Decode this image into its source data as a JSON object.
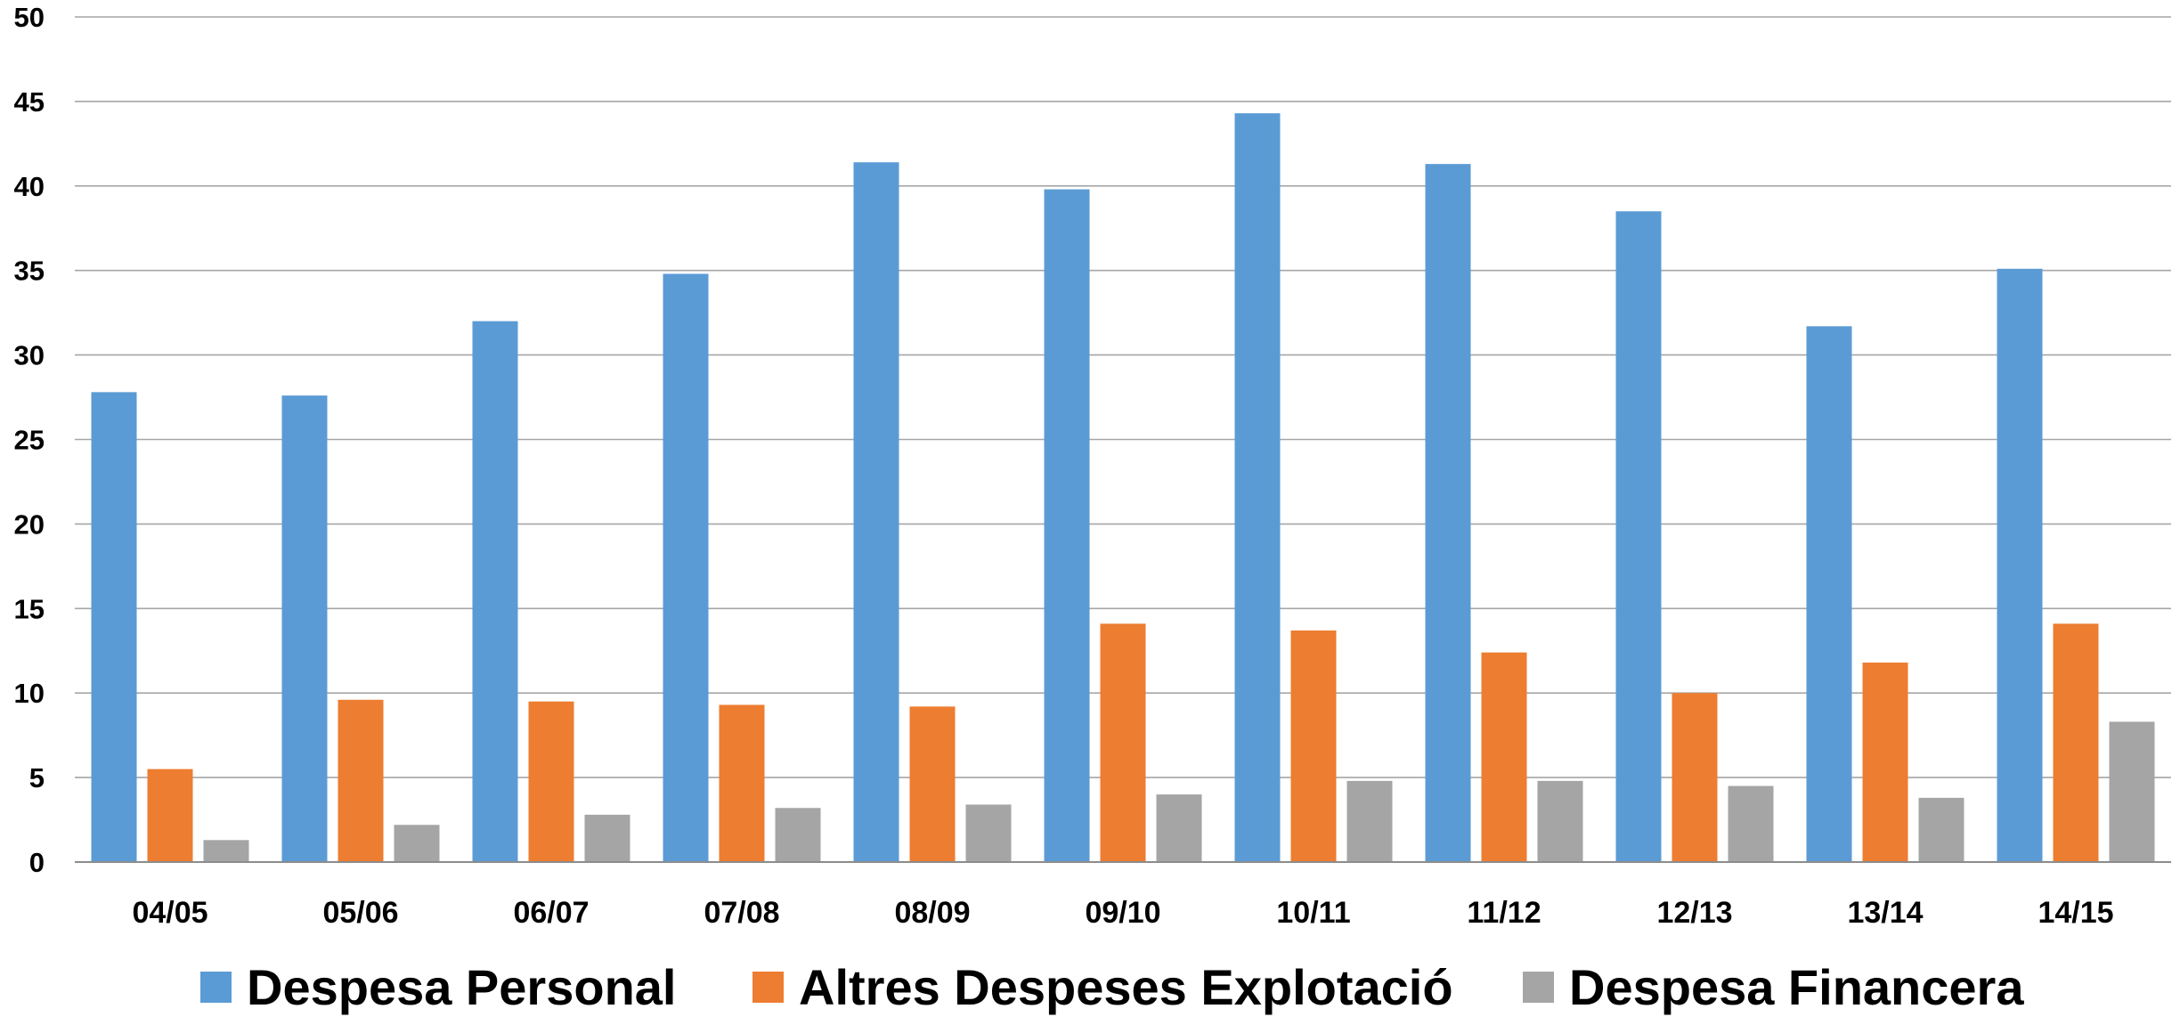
{
  "chart_data": {
    "type": "bar",
    "title": "",
    "xlabel": "",
    "ylabel": "",
    "ylim": [
      0,
      50
    ],
    "yticks": [
      0,
      5,
      10,
      15,
      20,
      25,
      30,
      35,
      40,
      45,
      50
    ],
    "grid": true,
    "legend_position": "bottom",
    "categories": [
      "04/05",
      "05/06",
      "06/07",
      "07/08",
      "08/09",
      "09/10",
      "10/11",
      "11/12",
      "12/13",
      "13/14",
      "14/15"
    ],
    "series": [
      {
        "name": "Despesa Personal",
        "color": "#5b9bd5",
        "values": [
          27.8,
          27.6,
          32.0,
          34.8,
          41.4,
          39.8,
          44.3,
          41.3,
          38.5,
          31.7,
          35.1
        ]
      },
      {
        "name": "Altres Despeses Explotació",
        "color": "#ed7d31",
        "values": [
          5.5,
          9.6,
          9.5,
          9.3,
          9.2,
          14.1,
          13.7,
          12.4,
          10.0,
          11.8,
          14.1
        ]
      },
      {
        "name": "Despesa Financera",
        "color": "#a5a5a5",
        "values": [
          1.3,
          2.2,
          2.8,
          3.2,
          3.4,
          4.0,
          4.8,
          4.8,
          4.5,
          3.8,
          8.3
        ]
      }
    ]
  }
}
